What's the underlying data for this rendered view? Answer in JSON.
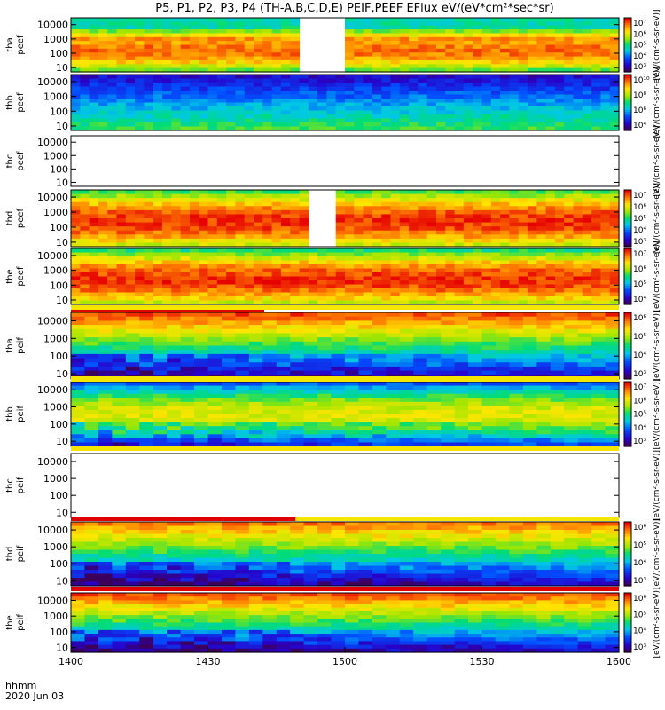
{
  "chart_data": {
    "type": "heatmap",
    "title": "P5, P1, P2, P3, P4 (TH-A,B,C,D,E) PEIF,PEEF EFlux eV/(eV*cm²*sec*sr)",
    "x_ticks": [
      "1400",
      "1430",
      "1500",
      "1530",
      "1600"
    ],
    "x_corner_label": "hhmm",
    "date_label": "2020 Jun 03",
    "y_scale": "log",
    "panels": [
      {
        "probe": "tha",
        "species": "peef",
        "ylim": [
          5,
          30000
        ],
        "y_ticks": [
          "10",
          "100",
          "1000",
          "10000"
        ],
        "colorbar_ticks": [
          "10³",
          "10⁴",
          "10⁵",
          "10⁶",
          "10⁷"
        ],
        "colorbar_label": "[eV/(cm²-s-sr-eV)]",
        "data_gap": [
          "1450",
          "1459"
        ]
      },
      {
        "probe": "thb",
        "species": "peef",
        "ylim": [
          5,
          30000
        ],
        "y_ticks": [
          "10",
          "100",
          "1000",
          "10000"
        ],
        "colorbar_ticks": [
          "10⁴",
          "10⁶",
          "10⁸",
          "10¹⁰"
        ],
        "colorbar_label": "[eV/(cm²-s-sr-eV)]"
      },
      {
        "probe": "thc",
        "species": "peef",
        "ylim": [
          5,
          30000
        ],
        "y_ticks": [
          "10",
          "100",
          "1000",
          "10000"
        ],
        "colorbar_ticks": [],
        "colorbar_label": "[eV/(cm²-s-sr-eV)]",
        "empty": true
      },
      {
        "probe": "thd",
        "species": "peef",
        "ylim": [
          5,
          30000
        ],
        "y_ticks": [
          "10",
          "100",
          "1000",
          "10000"
        ],
        "colorbar_ticks": [
          "10³",
          "10⁴",
          "10⁵",
          "10⁶",
          "10⁷"
        ],
        "colorbar_label": "[eV/(cm²-s-sr-eV)]",
        "data_gap": [
          "1452",
          "1458"
        ]
      },
      {
        "probe": "the",
        "species": "peef",
        "ylim": [
          5,
          30000
        ],
        "y_ticks": [
          "10",
          "100",
          "1000",
          "10000"
        ],
        "colorbar_ticks": [
          "10⁴",
          "10⁵",
          "10⁶",
          "10⁷"
        ],
        "colorbar_label": "[eV/(cm²-s-sr-eV)]"
      },
      {
        "probe": "tha",
        "species": "peif",
        "ylim": [
          5,
          30000
        ],
        "y_ticks": [
          "10",
          "100",
          "1000",
          "10000"
        ],
        "colorbar_ticks": [
          "10³",
          "10⁴",
          "10⁵",
          "10⁶"
        ],
        "colorbar_label": "[eV/(cm²-s-sr-eV)]"
      },
      {
        "probe": "thb",
        "species": "peif",
        "ylim": [
          5,
          30000
        ],
        "y_ticks": [
          "10",
          "100",
          "1000",
          "10000"
        ],
        "colorbar_ticks": [
          "10³",
          "10⁴",
          "10⁵",
          "10⁶",
          "10⁷"
        ],
        "colorbar_label": "[eV/(cm²-s-sr-eV)]"
      },
      {
        "probe": "thc",
        "species": "peif",
        "ylim": [
          5,
          30000
        ],
        "y_ticks": [
          "10",
          "100",
          "1000",
          "10000"
        ],
        "colorbar_ticks": [],
        "colorbar_label": "[eV/(cm²-s-sr-eV)]",
        "empty": true
      },
      {
        "probe": "thd",
        "species": "peif",
        "ylim": [
          5,
          30000
        ],
        "y_ticks": [
          "10",
          "100",
          "1000",
          "10000"
        ],
        "colorbar_ticks": [
          "10³",
          "10⁴",
          "10⁵",
          "10⁶"
        ],
        "colorbar_label": "[eV/(cm²-s-sr-eV)]"
      },
      {
        "probe": "the",
        "species": "peif",
        "ylim": [
          5,
          30000
        ],
        "y_ticks": [
          "10",
          "100",
          "1000",
          "10000"
        ],
        "colorbar_ticks": [
          "10³",
          "10⁴",
          "10⁵",
          "10⁶"
        ],
        "colorbar_label": "[eV/(cm²-s-sr-eV)]"
      }
    ]
  }
}
